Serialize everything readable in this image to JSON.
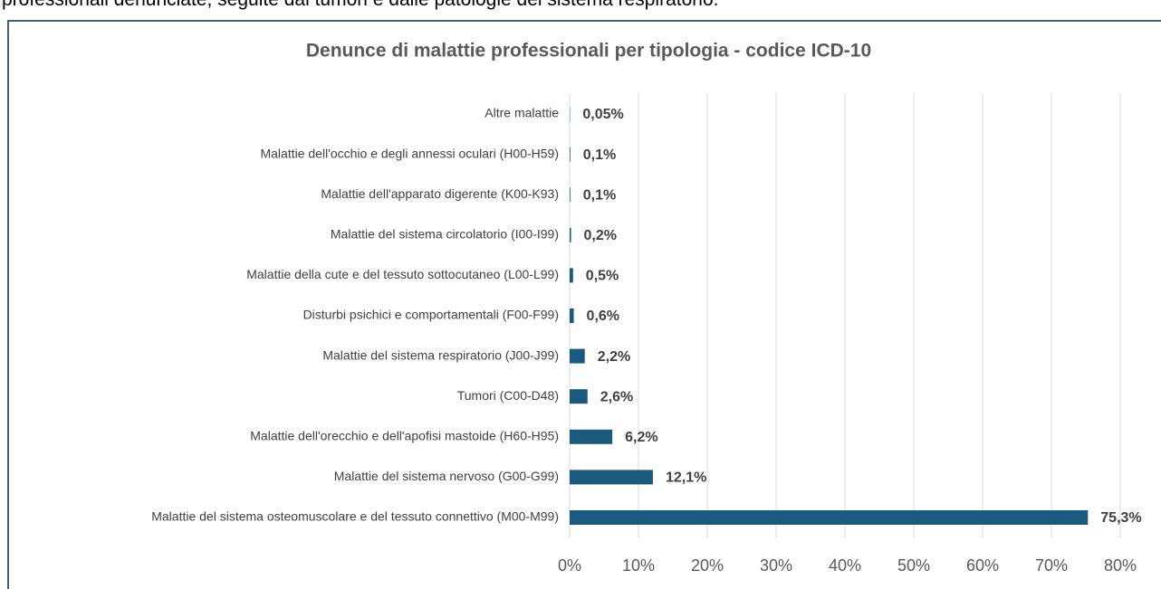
{
  "text": {
    "intro": "professionali denunciate, seguite dai tumori e dalle patologie del sistema respiratorio."
  },
  "chart_data": {
    "type": "bar",
    "orientation": "horizontal",
    "title": "Denunce di malattie professionali per tipologia - codice ICD-10",
    "categories": [
      "Altre malattie",
      "Malattie dell'occhio e degli annessi oculari (H00-H59)",
      "Malattie dell'apparato digerente (K00-K93)",
      "Malattie del sistema circolatorio (I00-I99)",
      "Malattie della cute e del tessuto sottocutaneo (L00-L99)",
      "Disturbi psichici e comportamentali (F00-F99)",
      "Malattie del sistema respiratorio (J00-J99)",
      "Tumori (C00-D48)",
      "Malattie dell'orecchio e dell'apofisi mastoide (H60-H95)",
      "Malattie del sistema nervoso (G00-G99)",
      "Malattie del sistema osteomuscolare e del tessuto connettivo (M00-M99)"
    ],
    "values": [
      0.05,
      0.1,
      0.1,
      0.2,
      0.5,
      0.6,
      2.2,
      2.6,
      6.2,
      12.1,
      75.3
    ],
    "value_labels": [
      "0,05%",
      "0,1%",
      "0,1%",
      "0,2%",
      "0,5%",
      "0,6%",
      "2,2%",
      "2,6%",
      "6,2%",
      "12,1%",
      "75,3%"
    ],
    "color": "#1b5a7f",
    "xlim": [
      0,
      80
    ],
    "xticks": [
      {
        "value": 0,
        "label": "0%"
      },
      {
        "value": 10,
        "label": "10%"
      },
      {
        "value": 20,
        "label": "20%"
      },
      {
        "value": 30,
        "label": "30%"
      },
      {
        "value": 40,
        "label": "40%"
      },
      {
        "value": 50,
        "label": "50%"
      },
      {
        "value": 60,
        "label": "60%"
      },
      {
        "value": 70,
        "label": "70%"
      },
      {
        "value": 80,
        "label": "80%"
      }
    ],
    "grid": true
  }
}
